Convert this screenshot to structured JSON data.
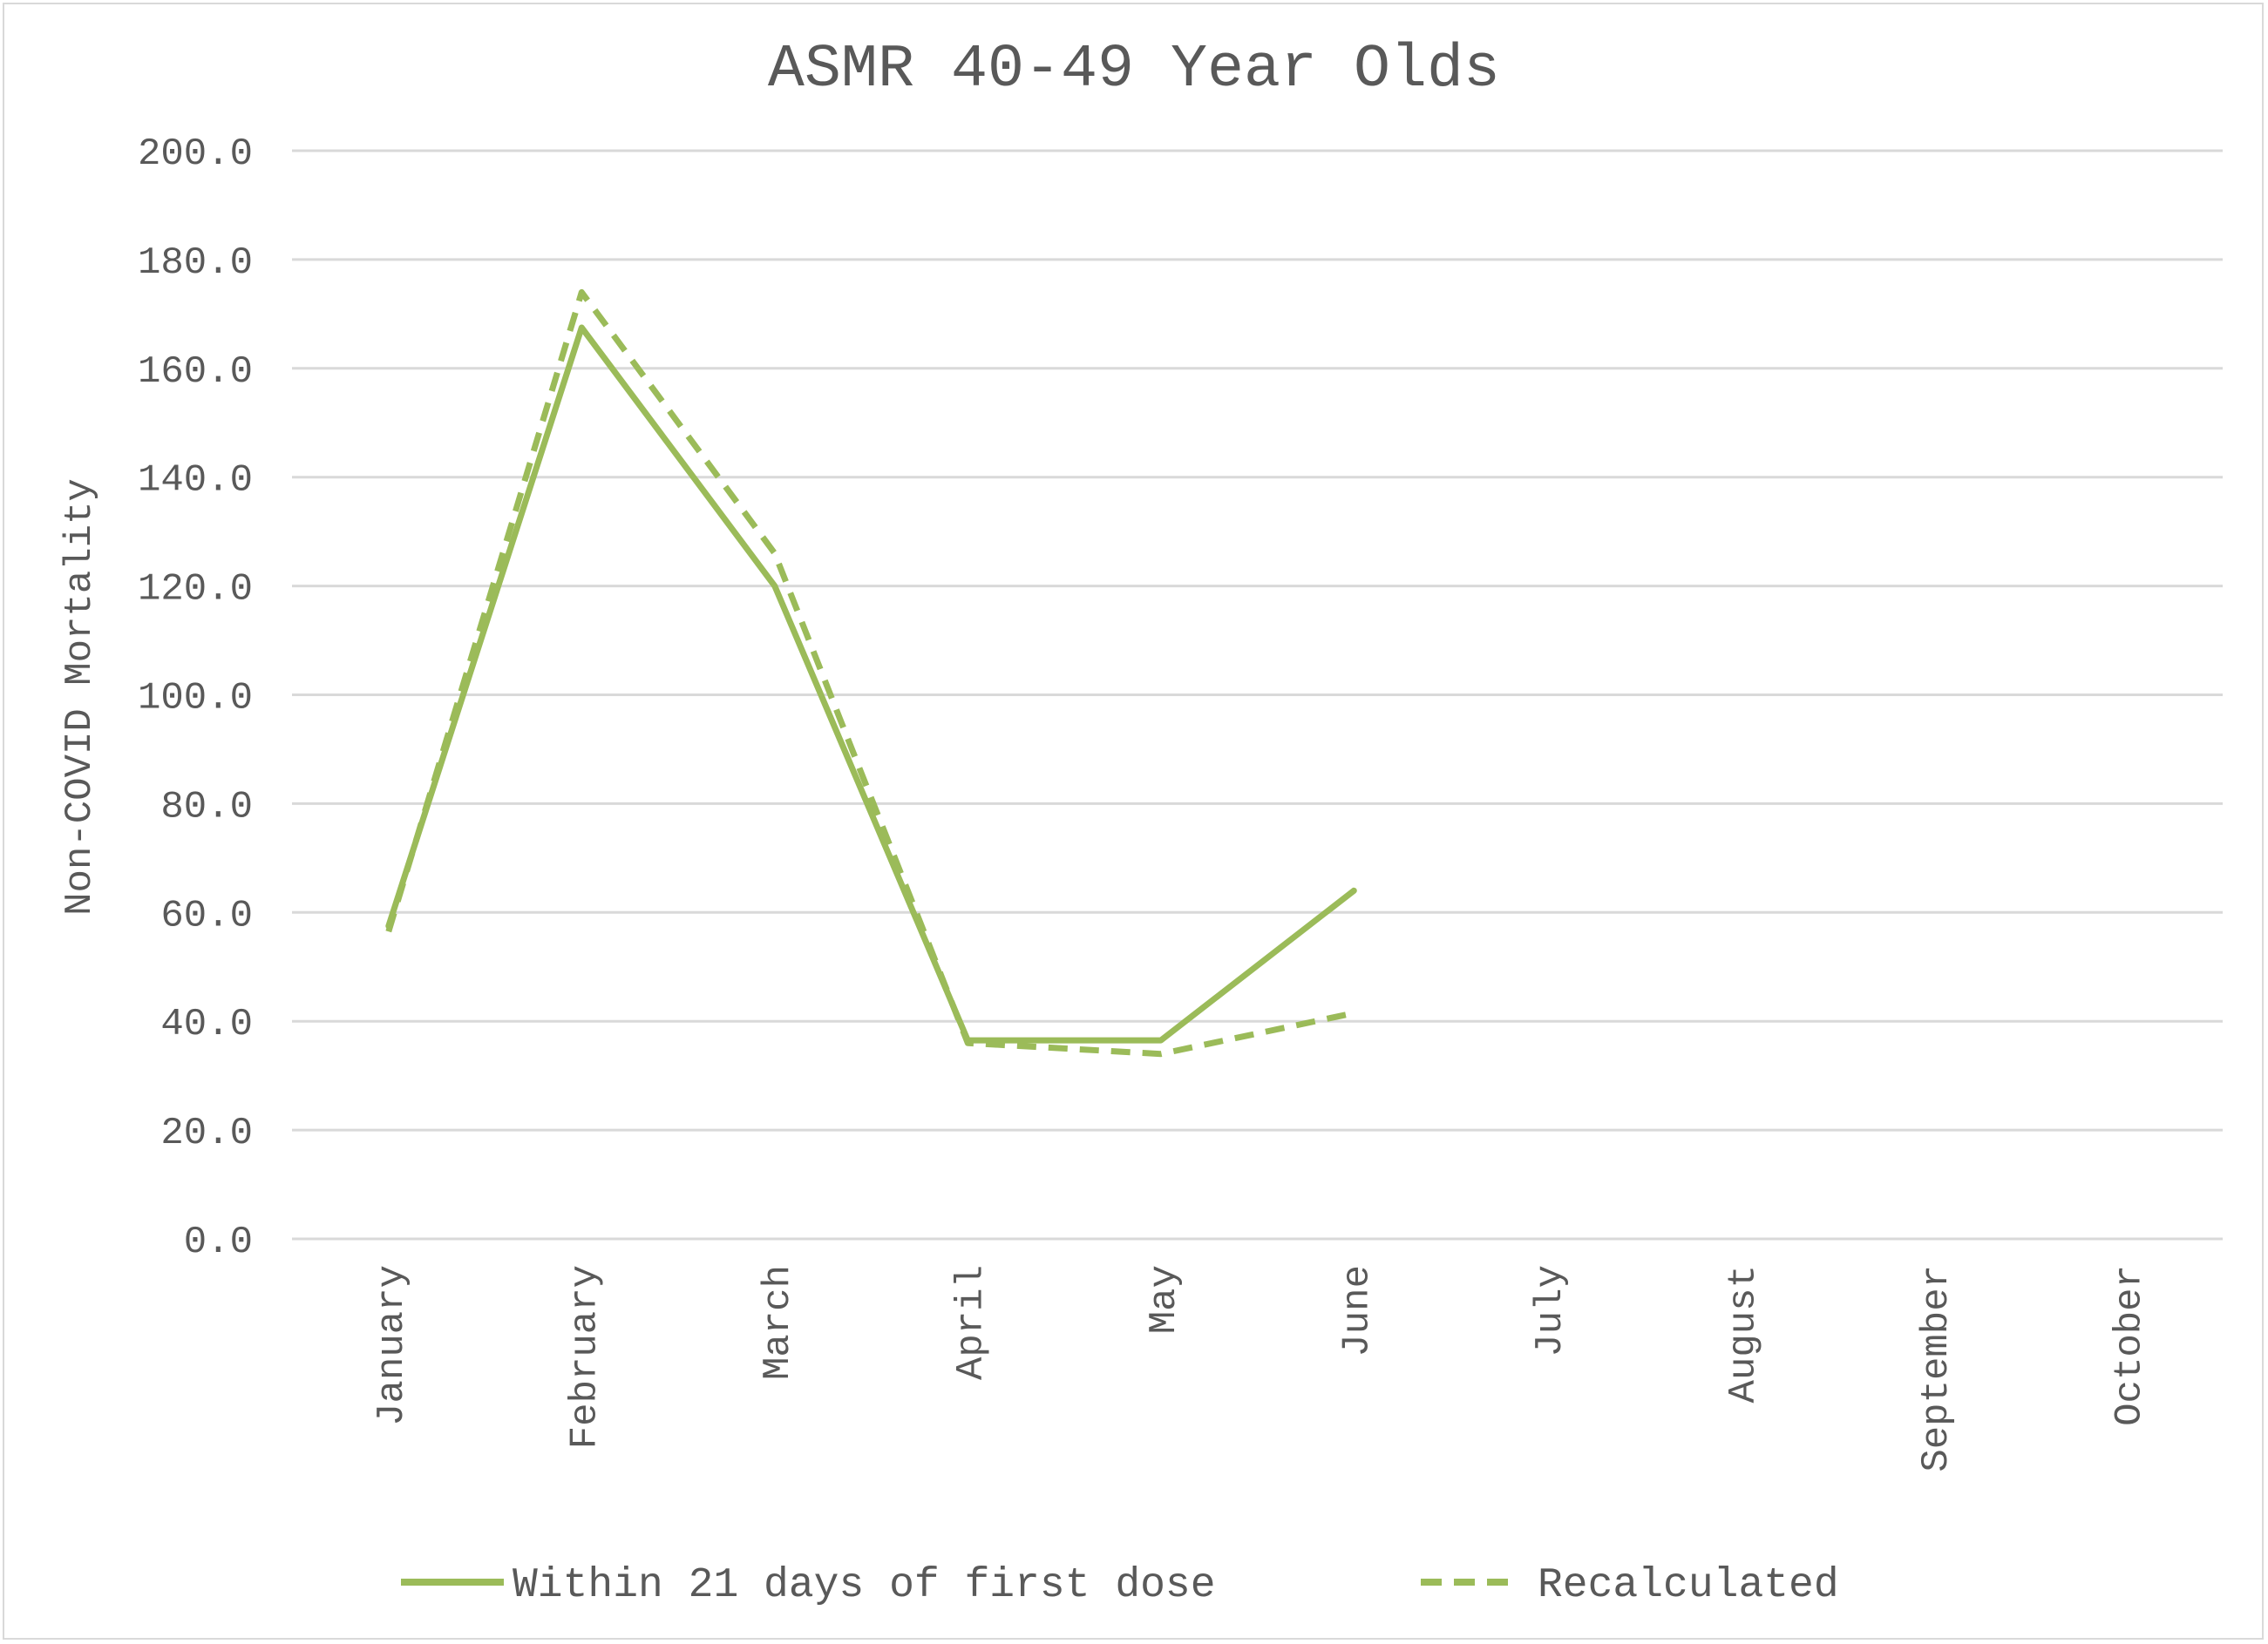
{
  "chart_data": {
    "type": "line",
    "title": "ASMR 40-49 Year Olds",
    "xlabel": "",
    "ylabel": "Non-COVID Mortality",
    "ylim": [
      0,
      200
    ],
    "yticks": [
      "0.0",
      "20.0",
      "40.0",
      "60.0",
      "80.0",
      "100.0",
      "120.0",
      "140.0",
      "160.0",
      "180.0",
      "200.0"
    ],
    "categories": [
      "January",
      "February",
      "March",
      "April",
      "May",
      "June",
      "July",
      "August",
      "September",
      "October"
    ],
    "grid": true,
    "legend_position": "bottom",
    "series": [
      {
        "name": "Within 21 days of first dose",
        "style": "solid",
        "color": "#9bbb59",
        "values": [
          57.5,
          167.5,
          120.0,
          36.5,
          36.5,
          64.0,
          null,
          null,
          null,
          null
        ]
      },
      {
        "name": "Recalculated",
        "style": "dashed",
        "color": "#9bbb59",
        "values": [
          56.5,
          174.0,
          126.0,
          36.0,
          34.0,
          41.5,
          null,
          null,
          null,
          null
        ]
      }
    ]
  }
}
